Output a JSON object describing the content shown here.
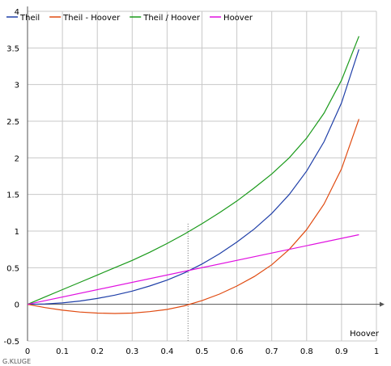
{
  "chart_data": {
    "type": "line",
    "xlabel": "Hoover",
    "credit": "G.KLUGE",
    "xlim": [
      0,
      1.0
    ],
    "ylim": [
      -0.5,
      4
    ],
    "x_ticks": [
      "0",
      "0.1",
      "0.2",
      "0.3",
      "0.4",
      "0.5",
      "0.6",
      "0.7",
      "0.8",
      "0.9",
      "1"
    ],
    "y_ticks": [
      "-0.5",
      "0",
      "0.5",
      "1",
      "1.5",
      "2",
      "2.5",
      "3",
      "3.5",
      "4"
    ],
    "x_tick_values": [
      0,
      0.1,
      0.2,
      0.3,
      0.4,
      0.5,
      0.6,
      0.7,
      0.8,
      0.9,
      1.0
    ],
    "y_tick_values": [
      -0.5,
      0,
      0.5,
      1,
      1.5,
      2,
      2.5,
      3,
      3.5,
      4
    ],
    "grid": true,
    "legend_placement": "top-left",
    "reference_line": {
      "x": 0.46,
      "y_top": 1.1,
      "style": "dotted"
    },
    "series": [
      {
        "name": "Theil",
        "color": "#1f3fa8",
        "x": [
          0,
          0.05,
          0.1,
          0.15,
          0.2,
          0.25,
          0.3,
          0.35,
          0.4,
          0.45,
          0.5,
          0.55,
          0.6,
          0.65,
          0.7,
          0.75,
          0.8,
          0.85,
          0.9,
          0.95
        ],
        "y": [
          0,
          0.005,
          0.02,
          0.045,
          0.08,
          0.125,
          0.18,
          0.25,
          0.33,
          0.43,
          0.55,
          0.69,
          0.85,
          1.03,
          1.24,
          1.5,
          1.82,
          2.22,
          2.75,
          3.48
        ]
      },
      {
        "name": "Theil - Hoover",
        "color": "#e04a10",
        "x": [
          0,
          0.05,
          0.1,
          0.15,
          0.2,
          0.25,
          0.3,
          0.35,
          0.4,
          0.45,
          0.5,
          0.55,
          0.6,
          0.65,
          0.7,
          0.75,
          0.8,
          0.85,
          0.9,
          0.95
        ],
        "y": [
          0,
          -0.045,
          -0.08,
          -0.105,
          -0.12,
          -0.125,
          -0.12,
          -0.1,
          -0.07,
          -0.02,
          0.05,
          0.14,
          0.25,
          0.38,
          0.54,
          0.75,
          1.02,
          1.37,
          1.85,
          2.53
        ]
      },
      {
        "name": "Theil / Hoover",
        "color": "#1a9a1a",
        "x": [
          0,
          0.05,
          0.1,
          0.15,
          0.2,
          0.25,
          0.3,
          0.35,
          0.4,
          0.45,
          0.5,
          0.55,
          0.6,
          0.65,
          0.7,
          0.75,
          0.8,
          0.85,
          0.9,
          0.95
        ],
        "y": [
          0,
          0.1,
          0.2,
          0.3,
          0.4,
          0.5,
          0.6,
          0.71,
          0.83,
          0.96,
          1.1,
          1.25,
          1.41,
          1.59,
          1.78,
          2.0,
          2.27,
          2.61,
          3.06,
          3.66
        ]
      },
      {
        "name": "Hoover",
        "color": "#e010e0",
        "x": [
          0,
          0.95
        ],
        "y": [
          0,
          0.95
        ]
      }
    ]
  }
}
